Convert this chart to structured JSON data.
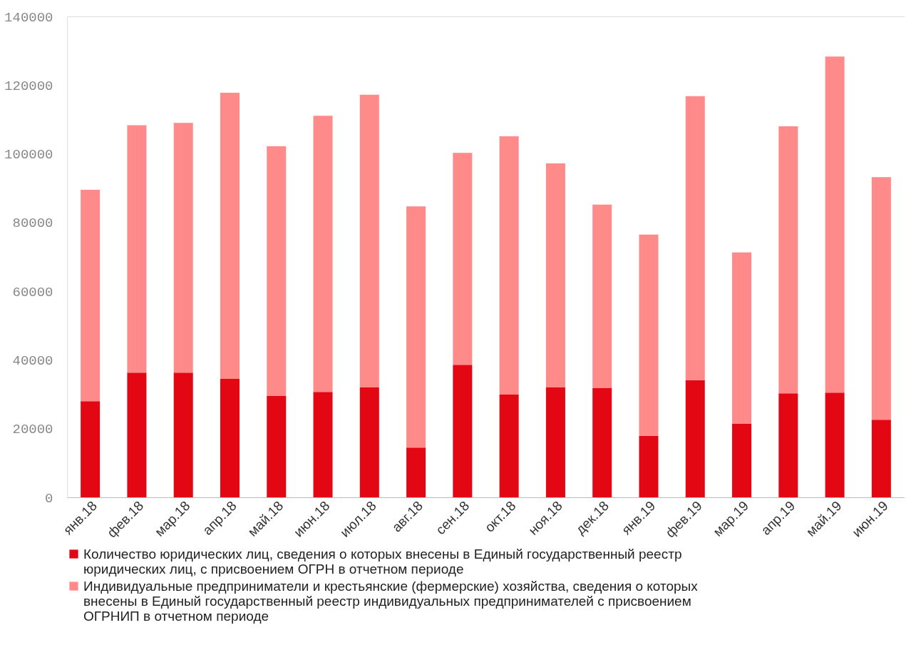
{
  "chart_data": {
    "type": "bar",
    "stacked": true,
    "categories": [
      "янв.18",
      "фев.18",
      "мар.18",
      "апр.18",
      "май.18",
      "июн.18",
      "июл.18",
      "авг.18",
      "сен.18",
      "окт.18",
      "ноя.18",
      "дек.18",
      "янв.19",
      "фев.19",
      "мар.19",
      "апр.19",
      "май.19",
      "июн.19"
    ],
    "series": [
      {
        "name": "Количество юридических лиц, сведения о которых внесены в Единый государственный реестр юридических лиц, с присвоением ОГРН в отчетном периоде",
        "color": "#e30613",
        "values": [
          28000,
          36300,
          36300,
          34500,
          29500,
          30700,
          32000,
          14500,
          38600,
          29900,
          32000,
          31800,
          17900,
          34100,
          21400,
          30300,
          30500,
          22600
        ]
      },
      {
        "name": "Индивидуальные предприниматели и крестьянские (фермерские) хозяйства, сведения о которых внесены в Единый государственный реестр индивидуальных предпринимателей  с присвоением ОГРНИП в отчетном периоде",
        "color": "#ff8a8a",
        "values": [
          61500,
          72000,
          72700,
          83300,
          72700,
          80400,
          85200,
          70200,
          61700,
          75200,
          65200,
          53400,
          58600,
          82700,
          49900,
          77700,
          97800,
          70600
        ]
      }
    ],
    "ylim": [
      0,
      140000
    ],
    "yticks": [
      0,
      20000,
      40000,
      60000,
      80000,
      100000,
      120000,
      140000
    ],
    "grid": false,
    "legend": "bottom"
  }
}
